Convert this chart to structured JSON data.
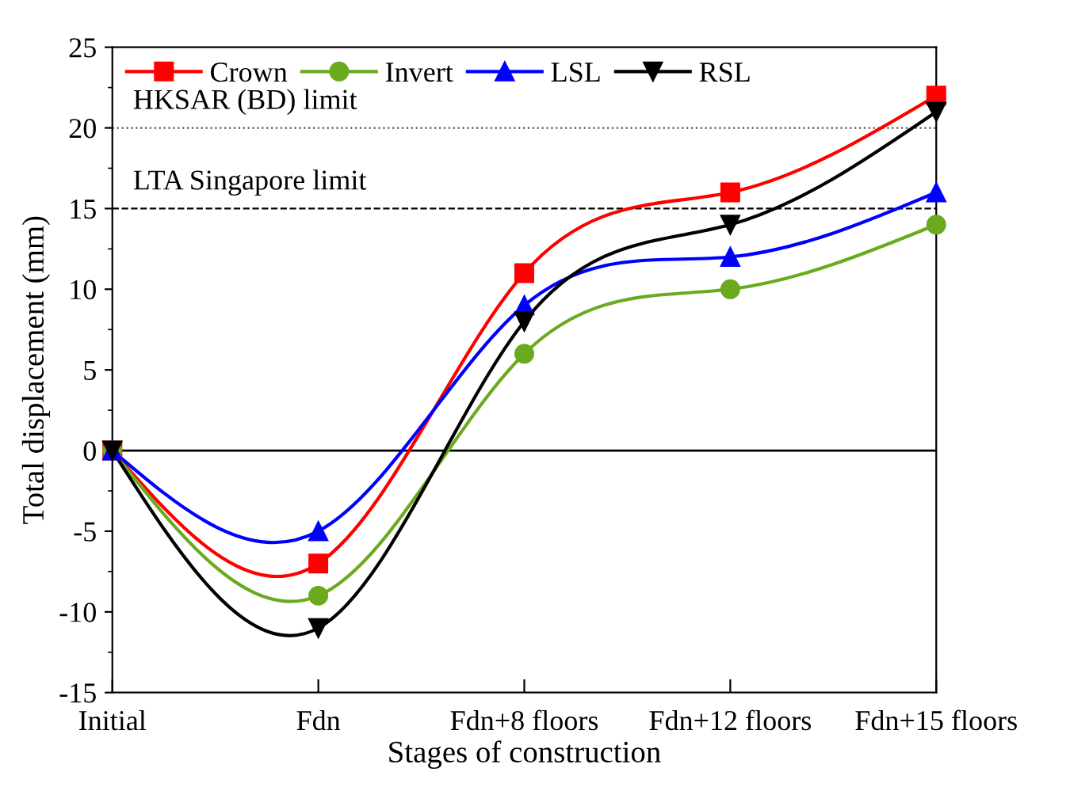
{
  "chart_data": {
    "type": "line",
    "xlabel": "Stages of construction",
    "ylabel": "Total displacement (mm)",
    "categories": [
      "Initial",
      "Fdn",
      "Fdn+8 floors",
      "Fdn+12 floors",
      "Fdn+15 floors"
    ],
    "series": [
      {
        "name": "Crown",
        "color": "#ff0000",
        "marker": "square",
        "values": [
          0,
          -7,
          11,
          16,
          22
        ]
      },
      {
        "name": "Invert",
        "color": "#6aaa1e",
        "marker": "circle",
        "values": [
          0,
          -9,
          6,
          10,
          14
        ]
      },
      {
        "name": "LSL",
        "color": "#0000ff",
        "marker": "triangle",
        "values": [
          0,
          -5,
          9,
          12,
          16
        ]
      },
      {
        "name": "RSL",
        "color": "#000000",
        "marker": "triangle_down",
        "values": [
          0,
          -11,
          8,
          14,
          21
        ]
      }
    ],
    "ylim": [
      -15,
      25
    ],
    "yticks": [
      -15,
      -10,
      -5,
      0,
      5,
      10,
      15,
      20,
      25
    ],
    "ref_lines": [
      {
        "axis": "y",
        "value": 20,
        "label": "HKSAR (BD) limit",
        "color": "#555555",
        "line_style": "dotted"
      },
      {
        "axis": "y",
        "value": 15,
        "label": "LTA Singapore limit",
        "color": "#000000",
        "line_style": "dashed"
      },
      {
        "axis": "y",
        "value": 0,
        "label": null,
        "color": "#000000",
        "line_style": "solid"
      }
    ],
    "grid": false,
    "legend": "top",
    "line_style": "solid"
  }
}
